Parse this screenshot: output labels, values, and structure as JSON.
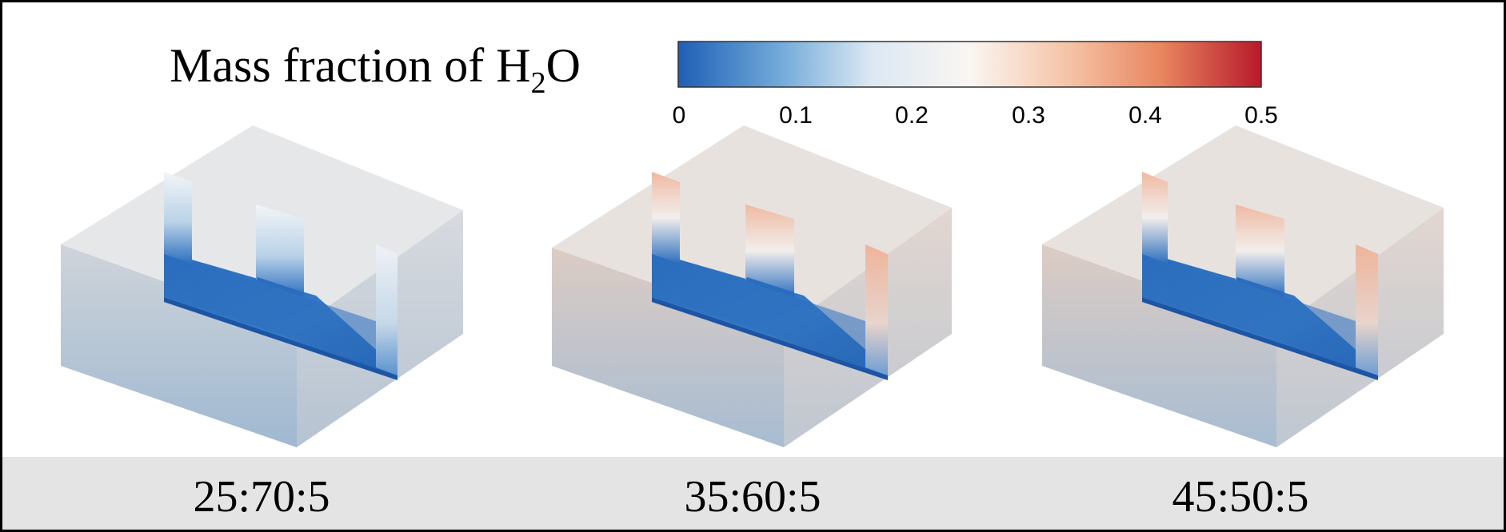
{
  "legend": {
    "title_main": "Mass fraction of H",
    "title_sub": "2",
    "title_end": "O",
    "ticks": [
      "0",
      "0.1",
      "0.2",
      "0.3",
      "0.4",
      "0.5"
    ],
    "colors": [
      "#1f5fb5",
      "#6fa8d8",
      "#dbe8f2",
      "#faf6f2",
      "#f5c3a6",
      "#e8855e",
      "#b8192b"
    ]
  },
  "panels": [
    {
      "label": "25:70:5"
    },
    {
      "label": "35:60:5"
    },
    {
      "label": "45:50:5"
    }
  ],
  "colors": {
    "frame": "#000000",
    "label_band": "#e4e4e4",
    "water_low": "#1f62b5",
    "water_high": "#e9a488",
    "solid": "#c9ced6"
  }
}
